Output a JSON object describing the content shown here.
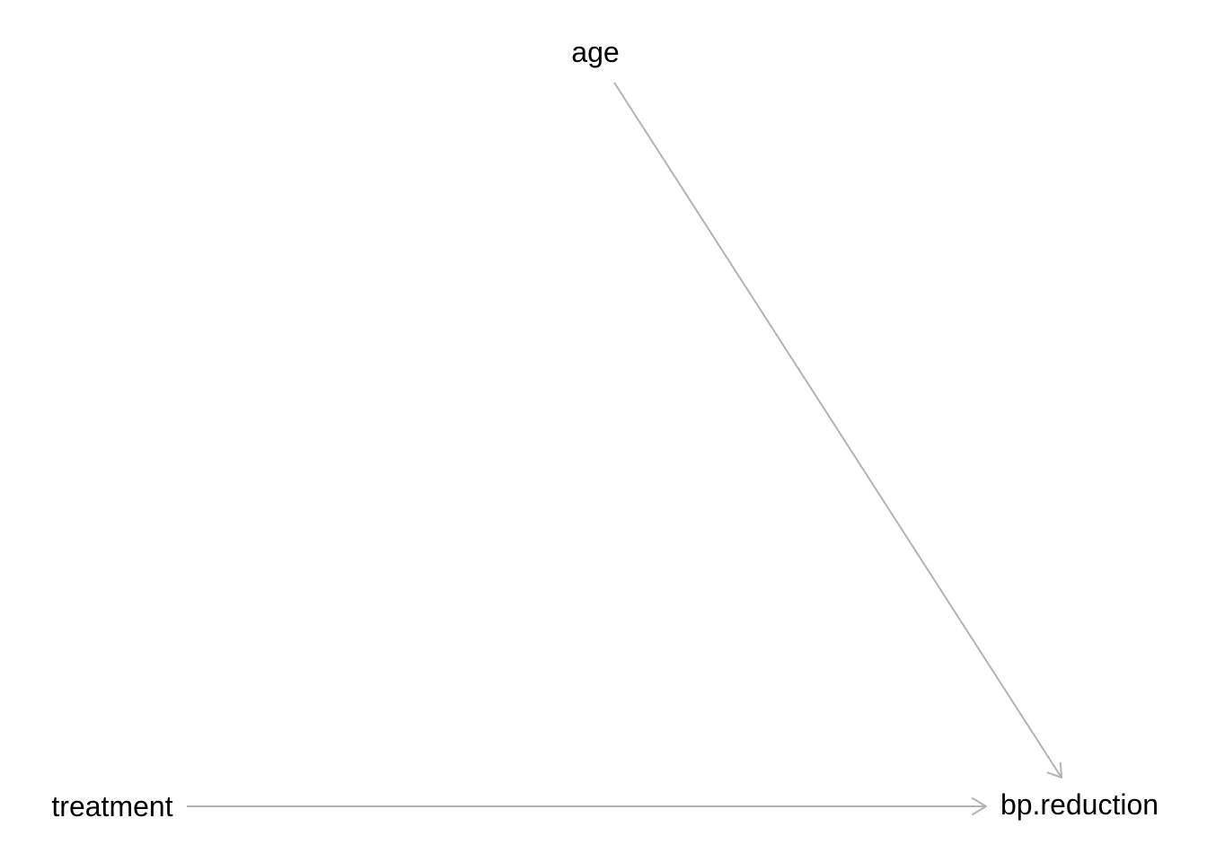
{
  "diagram": {
    "type": "directed-acyclic-graph",
    "edge_color": "#b3b3b3",
    "text_color": "#000000",
    "nodes": [
      {
        "id": "age",
        "label": "age"
      },
      {
        "id": "treatment",
        "label": "treatment"
      },
      {
        "id": "bp_reduction",
        "label": "bp.reduction"
      }
    ],
    "edges": [
      {
        "from": "age",
        "to": "bp_reduction"
      },
      {
        "from": "treatment",
        "to": "bp_reduction"
      }
    ]
  }
}
